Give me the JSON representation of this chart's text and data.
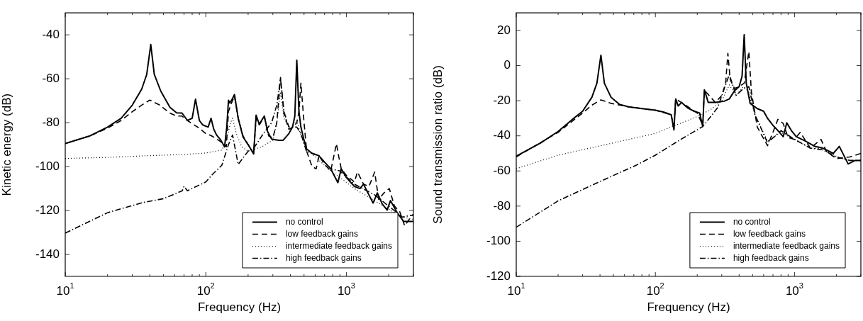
{
  "chart_data": [
    {
      "type": "line",
      "xlabel": "Frequency (Hz)",
      "ylabel": "Kinetic energy (dB)",
      "log": "x",
      "legend": "bottom right",
      "marker": "none",
      "xlim": [
        10,
        3000
      ],
      "ylim": [
        -150,
        -30
      ],
      "xticks": [
        {
          "value": 10,
          "label": "10$^{1}$"
        },
        {
          "value": 20,
          "label": null
        },
        {
          "value": 30,
          "label": null
        },
        {
          "value": 40,
          "label": null
        },
        {
          "value": 50,
          "label": null
        },
        {
          "value": 60,
          "label": null
        },
        {
          "value": 70,
          "label": null
        },
        {
          "value": 80,
          "label": null
        },
        {
          "value": 90,
          "label": null
        },
        {
          "value": 100,
          "label": "10$^{2}$"
        },
        {
          "value": 200,
          "label": null
        },
        {
          "value": 300,
          "label": null
        },
        {
          "value": 400,
          "label": null
        },
        {
          "value": 500,
          "label": null
        },
        {
          "value": 600,
          "label": null
        },
        {
          "value": 700,
          "label": null
        },
        {
          "value": 800,
          "label": null
        },
        {
          "value": 900,
          "label": null
        },
        {
          "value": 1000,
          "label": "10$^{3}$"
        },
        {
          "value": 2000,
          "label": null
        },
        {
          "value": 3000,
          "label": null
        }
      ],
      "yticks": [
        -140,
        -120,
        -100,
        -80,
        -60,
        -40
      ],
      "series": [
        {
          "name": "no control",
          "color": "#000000",
          "line_style": "solid",
          "x": [
            10,
            15,
            20,
            25,
            30,
            35,
            38,
            40.6,
            43,
            47.8,
            55.6,
            62,
            67.7,
            74,
            80,
            84.5,
            90,
            95,
            104,
            109,
            114,
            119,
            128,
            136,
            141,
            145,
            148,
            152,
            160,
            170,
            184,
            200,
            219,
            228,
            240,
            261,
            275,
            294,
            330,
            355,
            390,
            414,
            430,
            444,
            460,
            475,
            500,
            522,
            570,
            636,
            700,
            774,
            870,
            920,
            1000,
            1140,
            1250,
            1325,
            1450,
            1550,
            1660,
            1800,
            1950,
            2060,
            2300,
            2560,
            3000
          ],
          "values": [
            -89.5,
            -86,
            -82,
            -78,
            -72,
            -64.7,
            -58,
            -44.4,
            -58,
            -65.6,
            -73,
            -75.5,
            -75.6,
            -79,
            -78,
            -69.3,
            -79,
            -81,
            -82,
            -78,
            -83,
            -85.5,
            -88,
            -91,
            -82,
            -69.8,
            -71,
            -70,
            -67.2,
            -78,
            -86.5,
            -90,
            -94.2,
            -76.6,
            -80.7,
            -77,
            -84,
            -87.5,
            -88,
            -88,
            -85,
            -82,
            -77,
            -51.6,
            -75,
            -82,
            -88,
            -92,
            -94,
            -95,
            -98,
            -101,
            -107.3,
            -101,
            -105,
            -109,
            -110,
            -108,
            -113,
            -116.6,
            -112,
            -117,
            -119.8,
            -115.5,
            -121,
            -125,
            -125
          ]
        },
        {
          "name": "low feedback gains",
          "color": "#000000",
          "line_style": "dashed",
          "x": [
            10,
            15,
            20,
            25,
            30,
            35,
            40,
            47,
            55,
            62,
            67.7,
            74,
            80,
            90,
            100,
            110,
            120,
            130,
            140,
            145,
            150,
            160,
            170,
            184,
            200,
            219,
            228,
            240,
            261,
            280,
            300,
            320,
            340,
            360,
            390,
            420,
            444,
            460,
            475,
            500,
            522,
            570,
            610,
            640,
            700,
            774,
            850,
            880,
            920,
            1000,
            1140,
            1200,
            1325,
            1450,
            1590,
            1700,
            1850,
            2020,
            2200,
            2400,
            2600,
            2800,
            3000
          ],
          "values": [
            -89.5,
            -86,
            -82.5,
            -79,
            -75,
            -72,
            -69.7,
            -72,
            -75.5,
            -77,
            -77,
            -79,
            -80.5,
            -82.5,
            -85,
            -86,
            -87.5,
            -89,
            -91,
            -75,
            -72,
            -68,
            -78,
            -86,
            -90,
            -94,
            -78,
            -81,
            -77.5,
            -86,
            -87,
            -80,
            -59.4,
            -76,
            -83,
            -82,
            -80,
            -75,
            -62,
            -80,
            -93,
            -100,
            -101,
            -95,
            -99,
            -102,
            -89.6,
            -95,
            -101,
            -104,
            -107,
            -102.5,
            -108,
            -109,
            -102.5,
            -115,
            -112,
            -110,
            -118,
            -120.6,
            -127,
            -124,
            -121.7
          ]
        },
        {
          "name": "intermediate feedback gains",
          "color": "#000000",
          "line_style": "dotted",
          "x": [
            10,
            20,
            40,
            70,
            100,
            130,
            140,
            150,
            155,
            165,
            180,
            200,
            250,
            300,
            320,
            340,
            360,
            400,
            444,
            475,
            520,
            636,
            774,
            900,
            1140,
            1450,
            1950,
            2500,
            3000
          ],
          "values": [
            -96.3,
            -95.8,
            -95,
            -94.5,
            -93.8,
            -92.5,
            -88,
            -80,
            -78,
            -85,
            -91,
            -93,
            -91,
            -88,
            -80,
            -66,
            -78,
            -83,
            -79,
            -86,
            -92,
            -97,
            -102,
            -105,
            -110,
            -114,
            -119,
            -123,
            -124
          ]
        },
        {
          "name": "high feedback gains",
          "color": "#000000",
          "line_style": "dashdot",
          "x": [
            10,
            20,
            35,
            50,
            60,
            68,
            70,
            74,
            100,
            111,
            130,
            145,
            155,
            170,
            200,
            219,
            261,
            294,
            320,
            340,
            360,
            390,
            444,
            475,
            520,
            636,
            774,
            900,
            1140,
            1600,
            2000,
            2500,
            3000
          ],
          "values": [
            -130.3,
            -121,
            -116.5,
            -114.6,
            -112.5,
            -111,
            -109,
            -111,
            -107,
            -103.7,
            -99.4,
            -90,
            -85.6,
            -99,
            -93,
            -91.7,
            -84.3,
            -80,
            -72,
            -60,
            -75,
            -82,
            -82,
            -85,
            -93,
            -95,
            -101,
            -102,
            -108,
            -113,
            -118,
            -123,
            -122
          ]
        }
      ]
    },
    {
      "type": "line",
      "xlabel": "Frequency (Hz)",
      "ylabel": "Sound transmission ratio (dB)",
      "log": "x",
      "legend": "bottom right",
      "marker": "none",
      "xlim": [
        10,
        3000
      ],
      "ylim": [
        -120,
        30
      ],
      "xticks": [
        {
          "value": 10,
          "label": "10$^{1}$"
        },
        {
          "value": 20,
          "label": null
        },
        {
          "value": 30,
          "label": null
        },
        {
          "value": 40,
          "label": null
        },
        {
          "value": 50,
          "label": null
        },
        {
          "value": 60,
          "label": null
        },
        {
          "value": 70,
          "label": null
        },
        {
          "value": 80,
          "label": null
        },
        {
          "value": 90,
          "label": null
        },
        {
          "value": 100,
          "label": "10$^{2}$"
        },
        {
          "value": 200,
          "label": null
        },
        {
          "value": 300,
          "label": null
        },
        {
          "value": 400,
          "label": null
        },
        {
          "value": 500,
          "label": null
        },
        {
          "value": 600,
          "label": null
        },
        {
          "value": 700,
          "label": null
        },
        {
          "value": 800,
          "label": null
        },
        {
          "value": 900,
          "label": null
        },
        {
          "value": 1000,
          "label": "10$^{3}$"
        },
        {
          "value": 2000,
          "label": null
        },
        {
          "value": 3000,
          "label": null
        }
      ],
      "yticks": [
        -120,
        -100,
        -80,
        -60,
        -40,
        -20,
        0,
        20
      ],
      "series": [
        {
          "name": "no control",
          "color": "#000000",
          "line_style": "solid",
          "x": [
            10,
            15,
            20,
            25,
            30,
            35,
            38,
            40.6,
            43,
            48,
            55,
            64,
            80,
            100,
            115,
            130,
            136,
            140,
            146,
            154,
            170,
            190,
            208,
            219,
            225,
            240,
            270,
            312,
            340,
            370,
            400,
            420,
            435,
            450,
            480,
            540,
            600,
            640,
            700,
            760,
            830,
            880,
            950,
            1030,
            1200,
            1400,
            1600,
            1900,
            2100,
            2430,
            2730,
            3000
          ],
          "values": [
            -51.6,
            -44,
            -37.5,
            -31,
            -26,
            -18,
            -10,
            5.9,
            -10,
            -18,
            -22,
            -23.5,
            -24.5,
            -25.4,
            -26.5,
            -28,
            -36.6,
            -19,
            -23,
            -21,
            -24,
            -26,
            -27,
            -34.7,
            -13.8,
            -21,
            -21,
            -20.3,
            -19,
            -14.4,
            -12,
            -6,
            17.6,
            -10,
            -21.5,
            -24.5,
            -26,
            -30,
            -34,
            -37,
            -40.5,
            -32.6,
            -37,
            -40.5,
            -43,
            -46,
            -47,
            -50,
            -46,
            -56,
            -54,
            -54
          ]
        },
        {
          "name": "low feedback gains",
          "color": "#000000",
          "line_style": "dashed",
          "x": [
            10,
            20,
            30,
            35,
            40.6,
            48,
            64,
            100,
            130,
            136,
            140,
            154,
            200,
            219,
            225,
            270,
            300,
            320,
            332,
            345,
            370,
            400,
            435,
            470,
            490,
            540,
            640,
            700,
            760,
            830,
            900,
            1000,
            1100,
            1300,
            1550,
            1700,
            2000,
            2500,
            3000
          ],
          "values": [
            -52,
            -38,
            -27,
            -22.5,
            -19.5,
            -21.5,
            -23.5,
            -25.4,
            -28,
            -36,
            -19,
            -21,
            -27,
            -34,
            -14,
            -21,
            -17,
            -10,
            7,
            -8,
            -13,
            -12,
            -10,
            8,
            -15,
            -35,
            -45.6,
            -38,
            -30.6,
            -33,
            -41,
            -42,
            -38,
            -47,
            -42,
            -49,
            -53,
            -52,
            -50
          ]
        },
        {
          "name": "intermediate feedback gains",
          "color": "#000000",
          "line_style": "dotted",
          "x": [
            10,
            20,
            50,
            100,
            150,
            200,
            250,
            300,
            340,
            380,
            430,
            460,
            520,
            640,
            800,
            1000,
            1300,
            1600,
            2000,
            2500,
            3000
          ],
          "values": [
            -58.7,
            -51,
            -44,
            -38.6,
            -33,
            -29,
            -25,
            -20,
            -11,
            -17,
            -12,
            -14,
            -28,
            -43,
            -38,
            -42,
            -47,
            -47,
            -52,
            -54,
            -54
          ]
        },
        {
          "name": "high feedback gains",
          "color": "#000000",
          "line_style": "dashdot",
          "x": [
            10,
            20,
            40,
            73,
            100,
            154,
            219,
            250,
            280,
            340,
            380,
            430,
            470,
            520,
            640,
            800,
            1000,
            1300,
            1600,
            2000,
            2500,
            3000
          ],
          "values": [
            -92,
            -77,
            -66,
            -56.7,
            -51,
            -41.8,
            -34.7,
            -29,
            -24,
            -5,
            -17,
            -13,
            -12,
            -28,
            -44,
            -37,
            -42,
            -47,
            -48,
            -52,
            -54,
            -54
          ]
        }
      ]
    }
  ]
}
